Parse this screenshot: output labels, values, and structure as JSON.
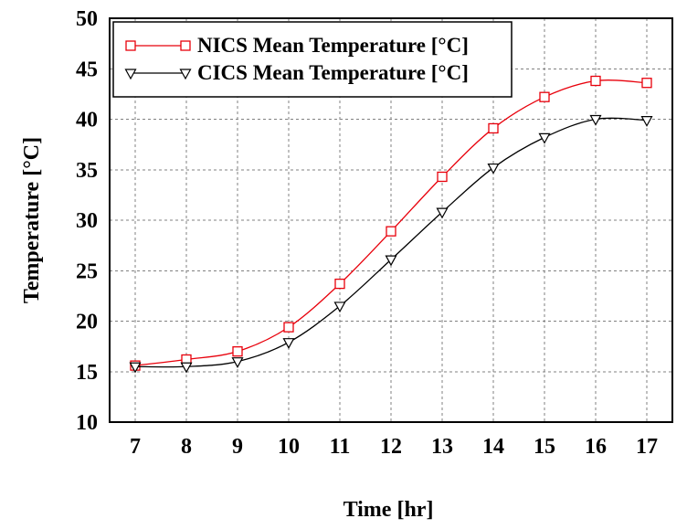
{
  "chart_data": {
    "type": "line",
    "xlabel": "Time [hr]",
    "ylabel": "Temperature [°C]",
    "xlim": [
      6.5,
      17.5
    ],
    "ylim": [
      10,
      50
    ],
    "x": [
      7,
      8,
      9,
      10,
      11,
      12,
      13,
      14,
      15,
      16,
      17
    ],
    "x_ticks": [
      "7",
      "8",
      "9",
      "10",
      "11",
      "12",
      "13",
      "14",
      "15",
      "16",
      "17"
    ],
    "y_ticks": [
      "10",
      "15",
      "20",
      "25",
      "30",
      "35",
      "40",
      "45",
      "50"
    ],
    "grid": true,
    "legend_position": "top-left",
    "series": [
      {
        "name": "NICS Mean Temperature [°C]",
        "color": "#e8000b",
        "marker": "square",
        "values": [
          15.6,
          16.2,
          17.0,
          19.4,
          23.7,
          28.9,
          34.3,
          39.1,
          42.2,
          43.8,
          43.6
        ]
      },
      {
        "name": "CICS Mean Temperature [°C]",
        "color": "#000000",
        "marker": "triangle-down",
        "values": [
          15.5,
          15.5,
          16.0,
          17.9,
          21.5,
          26.1,
          30.8,
          35.2,
          38.2,
          40.0,
          39.9
        ]
      }
    ]
  }
}
